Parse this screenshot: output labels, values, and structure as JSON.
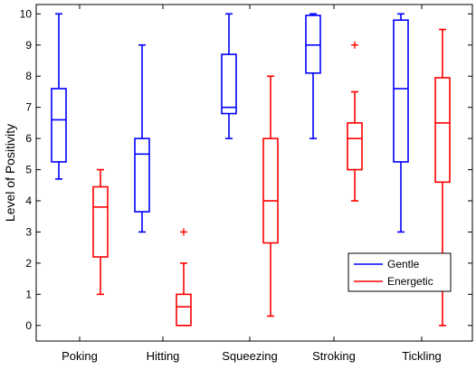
{
  "chart_data": {
    "type": "boxplot",
    "title": "",
    "xlabel": "",
    "ylabel": "Level of Positivity",
    "ylim": [
      -0.5,
      10.3
    ],
    "yticks": [
      0,
      1,
      2,
      3,
      4,
      5,
      6,
      7,
      8,
      9,
      10
    ],
    "grid": false,
    "legend_position": "bottom-right",
    "categories": [
      "Poking",
      "Hitting",
      "Squeezing",
      "Stroking",
      "Tickling"
    ],
    "series": [
      {
        "name": "Gentle",
        "color": "#0000ff",
        "boxes": [
          {
            "whisker_low": 4.7,
            "q1": 5.25,
            "median": 6.6,
            "q3": 7.6,
            "whisker_high": 10,
            "outliers": []
          },
          {
            "whisker_low": 3.0,
            "q1": 3.65,
            "median": 5.5,
            "q3": 6.0,
            "whisker_high": 9,
            "outliers": []
          },
          {
            "whisker_low": 6.0,
            "q1": 6.8,
            "median": 7.0,
            "q3": 8.7,
            "whisker_high": 10,
            "outliers": []
          },
          {
            "whisker_low": 6.0,
            "q1": 8.1,
            "median": 9.0,
            "q3": 9.95,
            "whisker_high": 10,
            "outliers": []
          },
          {
            "whisker_low": 3.0,
            "q1": 5.25,
            "median": 7.6,
            "q3": 9.8,
            "whisker_high": 10,
            "outliers": []
          }
        ]
      },
      {
        "name": "Energetic",
        "color": "#ff0000",
        "boxes": [
          {
            "whisker_low": 1.0,
            "q1": 2.2,
            "median": 3.8,
            "q3": 4.45,
            "whisker_high": 5,
            "outliers": []
          },
          {
            "whisker_low": 0.0,
            "q1": 0.0,
            "median": 0.6,
            "q3": 1.0,
            "whisker_high": 2,
            "outliers": [
              3
            ]
          },
          {
            "whisker_low": 0.3,
            "q1": 2.65,
            "median": 4.0,
            "q3": 6.0,
            "whisker_high": 8,
            "outliers": []
          },
          {
            "whisker_low": 4.0,
            "q1": 5.0,
            "median": 6.0,
            "q3": 6.5,
            "whisker_high": 7.5,
            "outliers": [
              9
            ]
          },
          {
            "whisker_low": 0.0,
            "q1": 4.6,
            "median": 6.5,
            "q3": 7.95,
            "whisker_high": 9.5,
            "outliers": []
          }
        ]
      }
    ]
  }
}
